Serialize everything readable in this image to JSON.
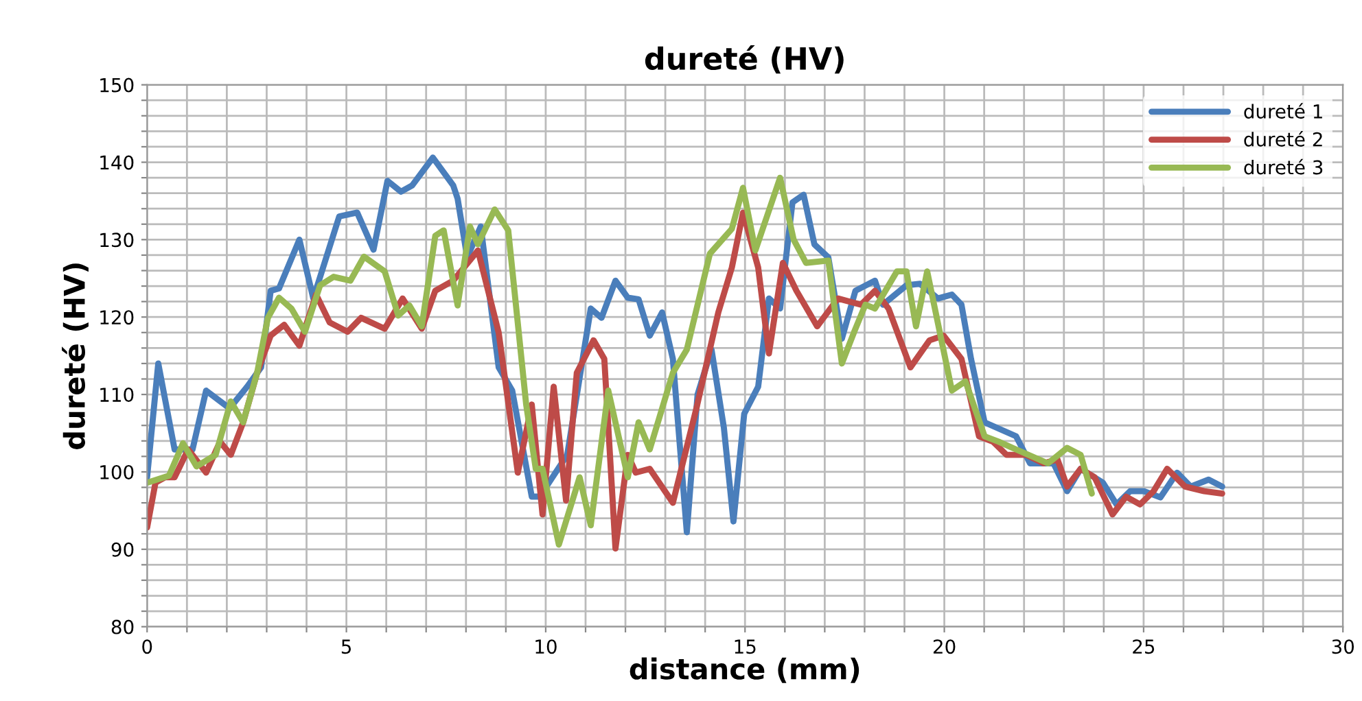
{
  "chart_data": {
    "type": "line",
    "title": "dureté (HV)",
    "xlabel": "distance (mm)",
    "ylabel": "dureté (HV)",
    "xlim": [
      0,
      30
    ],
    "ylim": [
      80,
      150
    ],
    "xticks": [
      0,
      {
        "value": 1,
        "label": null
      },
      {
        "value": 2,
        "label": null
      },
      {
        "value": 3,
        "label": null
      },
      {
        "value": 4,
        "label": null
      },
      5,
      {
        "value": 6,
        "label": null
      },
      {
        "value": 7,
        "label": null
      },
      {
        "value": 8,
        "label": null
      },
      {
        "value": 9,
        "label": null
      },
      10,
      {
        "value": 11,
        "label": null
      },
      {
        "value": 12,
        "label": null
      },
      {
        "value": 13,
        "label": null
      },
      {
        "value": 14,
        "label": null
      },
      15,
      {
        "value": 16,
        "label": null
      },
      {
        "value": 17,
        "label": null
      },
      {
        "value": 18,
        "label": null
      },
      {
        "value": 19,
        "label": null
      },
      20,
      {
        "value": 21,
        "label": null
      },
      {
        "value": 22,
        "label": null
      },
      {
        "value": 23,
        "label": null
      },
      {
        "value": 24,
        "label": null
      },
      25,
      {
        "value": 26,
        "label": null
      },
      {
        "value": 27,
        "label": null
      },
      {
        "value": 28,
        "label": null
      },
      {
        "value": 29,
        "label": null
      },
      30
    ],
    "yticks": [
      80,
      {
        "value": 82,
        "label": null
      },
      {
        "value": 84,
        "label": null
      },
      {
        "value": 86,
        "label": null
      },
      {
        "value": 88,
        "label": null
      },
      90,
      {
        "value": 92,
        "label": null
      },
      {
        "value": 94,
        "label": null
      },
      {
        "value": 96,
        "label": null
      },
      {
        "value": 98,
        "label": null
      },
      100,
      {
        "value": 102,
        "label": null
      },
      {
        "value": 104,
        "label": null
      },
      {
        "value": 106,
        "label": null
      },
      {
        "value": 108,
        "label": null
      },
      110,
      {
        "value": 112,
        "label": null
      },
      {
        "value": 114,
        "label": null
      },
      {
        "value": 116,
        "label": null
      },
      {
        "value": 118,
        "label": null
      },
      120,
      {
        "value": 122,
        "label": null
      },
      {
        "value": 124,
        "label": null
      },
      {
        "value": 126,
        "label": null
      },
      {
        "value": 128,
        "label": null
      },
      130,
      {
        "value": 132,
        "label": null
      },
      {
        "value": 134,
        "label": null
      },
      {
        "value": 136,
        "label": null
      },
      {
        "value": 138,
        "label": null
      },
      140,
      {
        "value": 142,
        "label": null
      },
      {
        "value": 144,
        "label": null
      },
      {
        "value": 146,
        "label": null
      },
      {
        "value": 148,
        "label": null
      },
      150
    ],
    "grid": true,
    "legend": "top right",
    "marker": "none",
    "line_style": "solid",
    "series": [
      {
        "name": "dureté 1",
        "color": "#4a7ebb",
        "x": [
          0,
          0.28,
          0.69,
          1.14,
          1.48,
          2.07,
          2.51,
          2.86,
          3.1,
          3.31,
          3.82,
          4.17,
          4.82,
          5.27,
          5.68,
          6.03,
          6.37,
          6.65,
          7.17,
          7.68,
          7.79,
          8.03,
          8.37,
          8.82,
          9.16,
          9.65,
          9.85,
          10.54,
          11.13,
          11.4,
          11.75,
          12.06,
          12.33,
          12.61,
          12.92,
          13.19,
          13.54,
          13.81,
          14.16,
          14.47,
          14.71,
          14.98,
          15.33,
          15.6,
          15.88,
          16.19,
          16.47,
          16.74,
          17.09,
          17.43,
          17.77,
          18.26,
          18.46,
          19.05,
          19.39,
          19.84,
          20.19,
          20.43,
          20.67,
          21.01,
          21.8,
          22.15,
          22.74,
          23.08,
          23.42,
          23.98,
          24.32,
          24.66,
          25.01,
          25.42,
          25.84,
          26.18,
          26.63,
          26.97
        ],
        "values": [
          99.3,
          114,
          102.9,
          102.9,
          110.5,
          108.2,
          111,
          113.5,
          123.4,
          123.7,
          130,
          122.4,
          133,
          133.5,
          128.7,
          137.6,
          136.2,
          137,
          140.6,
          137,
          135.3,
          127.7,
          131.7,
          113.5,
          110.5,
          96.8,
          96.8,
          102.2,
          121.1,
          119.9,
          124.7,
          122.5,
          122.3,
          117.6,
          120.6,
          114.6,
          92.2,
          110,
          115.8,
          105.7,
          93.6,
          107.5,
          111,
          122.4,
          121.1,
          134.8,
          135.8,
          129.4,
          127.7,
          117.2,
          123.4,
          124.7,
          121.6,
          124.1,
          124.3,
          122.4,
          122.9,
          121.6,
          114.6,
          106.4,
          104.6,
          101.1,
          101.1,
          97.5,
          100.4,
          98.6,
          95.8,
          97.5,
          97.5,
          96.7,
          99.9,
          98.1,
          99,
          98.1
        ]
      },
      {
        "name": "dureté 2",
        "color": "#be4b48",
        "x": [
          0,
          0.21,
          0.45,
          0.69,
          1.03,
          1.48,
          1.83,
          2.1,
          2.41,
          2.76,
          3.1,
          3.44,
          3.82,
          4.24,
          4.58,
          5.03,
          5.37,
          5.96,
          6.41,
          6.89,
          7.23,
          7.68,
          8.3,
          8.82,
          9.3,
          9.65,
          9.92,
          10.2,
          10.51,
          10.78,
          11.2,
          11.47,
          11.75,
          12.06,
          12.26,
          12.61,
          13.19,
          13.78,
          14.33,
          14.67,
          14.95,
          15.33,
          15.6,
          15.95,
          16.29,
          16.81,
          17.33,
          17.91,
          18.26,
          18.6,
          19.15,
          19.63,
          19.98,
          20.43,
          20.87,
          21.22,
          21.56,
          22.05,
          22.49,
          22.84,
          23.08,
          23.42,
          23.77,
          24.22,
          24.56,
          24.91,
          25.25,
          25.59,
          26.04,
          26.52,
          26.97
        ],
        "values": [
          92.8,
          98.6,
          99.3,
          99.3,
          102.9,
          99.9,
          103.9,
          102.2,
          106.4,
          112.8,
          117.6,
          119,
          116.3,
          122.9,
          119.3,
          118.1,
          119.9,
          118.5,
          122.4,
          118.5,
          123.4,
          124.7,
          128.6,
          118,
          99.9,
          108.7,
          94.5,
          111,
          96.3,
          112.8,
          117,
          114.6,
          90.1,
          102.2,
          99.9,
          100.4,
          96,
          108.2,
          120.6,
          126.4,
          133.5,
          126.4,
          115.3,
          127,
          123.4,
          118.8,
          122.4,
          121.6,
          123.4,
          121.1,
          113.5,
          117,
          117.6,
          114.6,
          104.6,
          103.9,
          102.2,
          102.2,
          101.1,
          101.6,
          98.1,
          100.4,
          99.3,
          94.5,
          96.8,
          95.8,
          97.5,
          100.4,
          98.1,
          97.5,
          97.2
        ]
      },
      {
        "name": "dureté 3",
        "color": "#98b954",
        "x": [
          0,
          0.55,
          0.9,
          1.24,
          1.72,
          2.1,
          2.41,
          2.76,
          3.03,
          3.31,
          3.62,
          3.96,
          4.34,
          4.68,
          5.1,
          5.44,
          5.96,
          6.3,
          6.58,
          6.89,
          7.23,
          7.44,
          7.79,
          8.1,
          8.3,
          8.72,
          9.06,
          9.51,
          9.75,
          9.92,
          10.33,
          10.85,
          11.13,
          11.57,
          12.06,
          12.33,
          12.61,
          13.19,
          13.54,
          14.12,
          14.67,
          14.95,
          15.26,
          15.88,
          16.22,
          16.53,
          17.09,
          17.43,
          17.74,
          18.02,
          18.26,
          18.81,
          19.05,
          19.29,
          19.57,
          20.19,
          20.53,
          21.01,
          21.36,
          21.8,
          22.6,
          23.08,
          23.42,
          23.7
        ],
        "values": [
          98.6,
          99.5,
          103.7,
          100.7,
          102.2,
          109.1,
          106.4,
          112.8,
          119.9,
          122.5,
          121.1,
          118.1,
          124.1,
          125.2,
          124.7,
          127.8,
          125.9,
          120.2,
          121.5,
          118.8,
          130.5,
          131.2,
          121.5,
          131.7,
          129.4,
          133.9,
          131.2,
          108.7,
          100.4,
          100.4,
          90.6,
          99.3,
          93.1,
          110.5,
          99.3,
          106.4,
          102.9,
          112.8,
          115.8,
          128.2,
          131.4,
          136.7,
          128.6,
          138,
          130,
          127,
          127.3,
          114,
          118.1,
          121.6,
          121.1,
          125.9,
          125.9,
          118.8,
          125.9,
          110.5,
          111.7,
          104.6,
          103.9,
          102.9,
          101.1,
          103.1,
          102.2,
          97.2
        ]
      }
    ]
  }
}
